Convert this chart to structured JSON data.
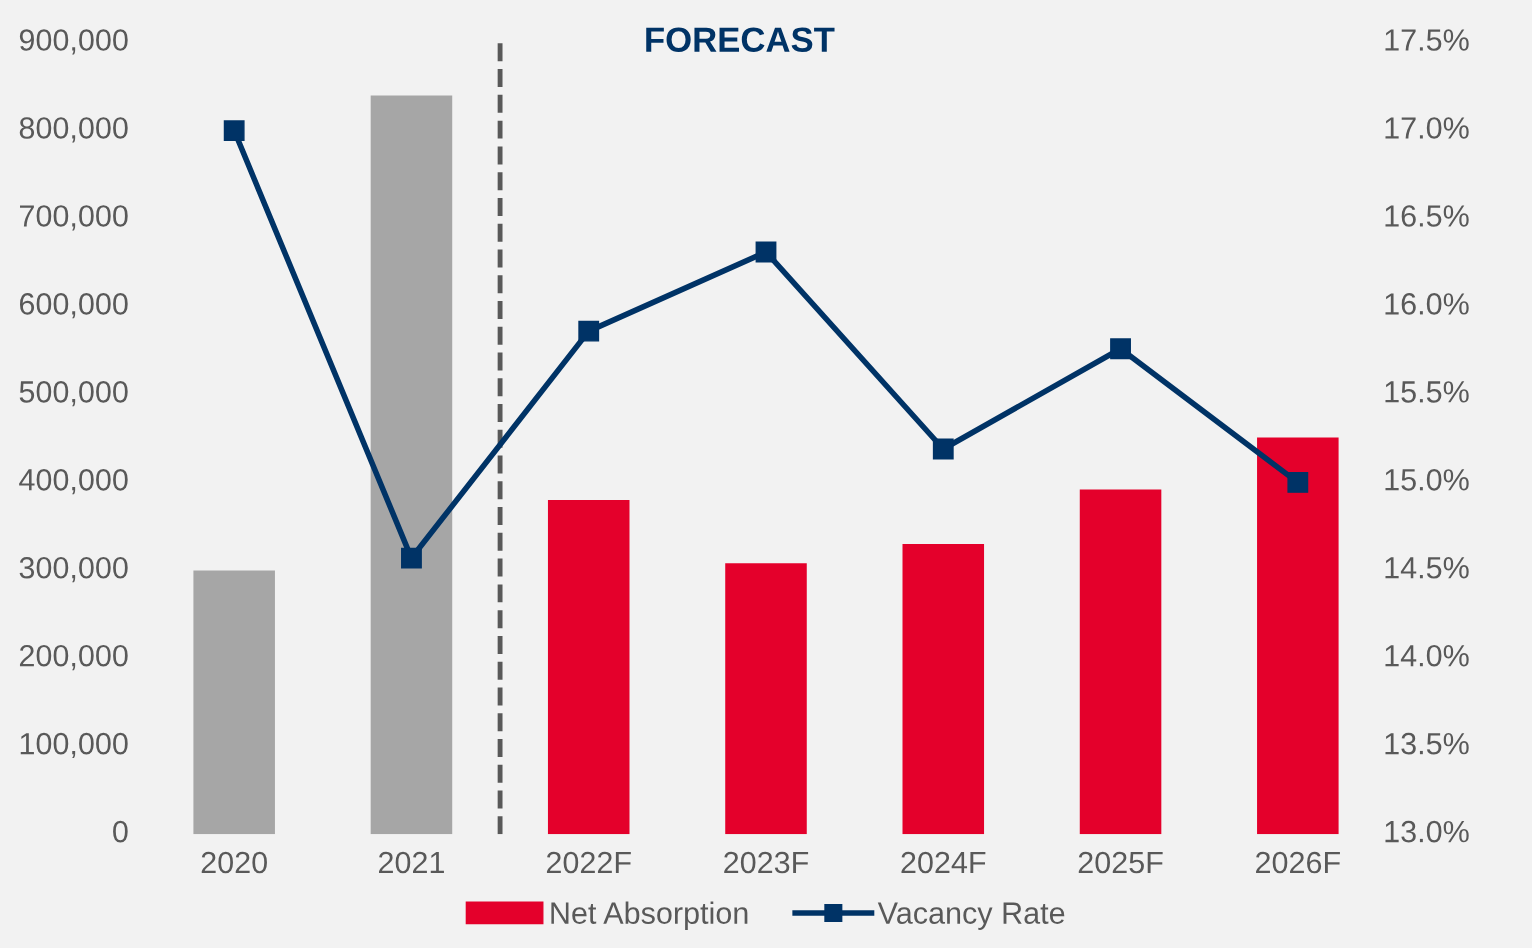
{
  "chart_data": {
    "type": "bar",
    "categories": [
      "2020",
      "2021",
      "2022F",
      "2023F",
      "2024F",
      "2025F",
      "2026F"
    ],
    "series": [
      {
        "name": "Net Absorption",
        "color": "#e4002b",
        "colors": [
          "#a6a6a6",
          "#a6a6a6",
          "#e4002b",
          "#e4002b",
          "#e4002b",
          "#e4002b",
          "#e4002b"
        ],
        "values": [
          300000,
          840000,
          380000,
          308000,
          330000,
          392000,
          451000
        ]
      },
      {
        "name": "Vacancy Rate",
        "type": "line",
        "axis": "y2",
        "color": "#003366",
        "marker": "square",
        "values": [
          17.0,
          14.57,
          15.86,
          16.31,
          15.19,
          15.76,
          15.0
        ]
      }
    ],
    "ylim": [
      0,
      900000
    ],
    "yticks": [
      {
        "value": 0,
        "label": "0"
      },
      {
        "value": 100000,
        "label": "100,000"
      },
      {
        "value": 200000,
        "label": "200,000"
      },
      {
        "value": 300000,
        "label": "300,000"
      },
      {
        "value": 400000,
        "label": "400,000"
      },
      {
        "value": 500000,
        "label": "500,000"
      },
      {
        "value": 600000,
        "label": "600,000"
      },
      {
        "value": 700000,
        "label": "700,000"
      },
      {
        "value": 800000,
        "label": "800,000"
      },
      {
        "value": 900000,
        "label": "900,000"
      }
    ],
    "y2lim": [
      13.0,
      17.5
    ],
    "y2ticks": [
      {
        "value": 13.0,
        "label": "13.0%"
      },
      {
        "value": 13.5,
        "label": "13.5%"
      },
      {
        "value": 14.0,
        "label": "14.0%"
      },
      {
        "value": 14.5,
        "label": "14.5%"
      },
      {
        "value": 15.0,
        "label": "15.0%"
      },
      {
        "value": 15.5,
        "label": "15.5%"
      },
      {
        "value": 16.0,
        "label": "16.0%"
      },
      {
        "value": 16.5,
        "label": "16.5%"
      },
      {
        "value": 17.0,
        "label": "17.0%"
      },
      {
        "value": 17.5,
        "label": "17.5%"
      }
    ],
    "annotations": [
      "FORECAST"
    ],
    "grid": false,
    "legend": "bottom"
  }
}
